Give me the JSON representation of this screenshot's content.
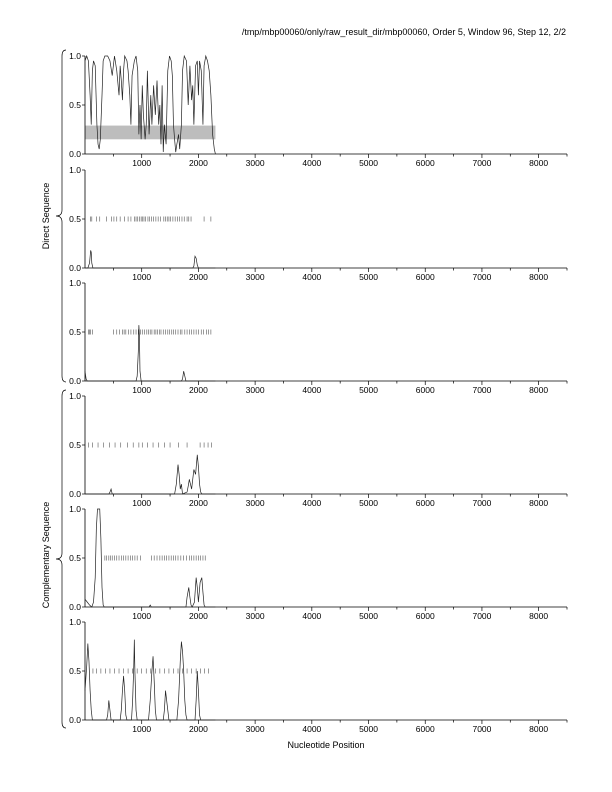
{
  "header": {
    "title": "/tmp/mbp00060/only/raw_result_dir/mbp00060, Order 5, Window 96, Step 12, 2/2"
  },
  "labels": {
    "xlabel": "Nucleotide Position",
    "direct": "Direct Sequence",
    "complementary": "Complementary Sequence"
  },
  "chart_data": {
    "type": "line",
    "xlim": [
      0,
      8500
    ],
    "ylim": [
      0,
      1
    ],
    "x_ticks": [
      1000,
      2000,
      3000,
      4000,
      5000,
      6000,
      7000,
      8000
    ],
    "y_ticks": [
      "0.0",
      "0.5",
      "1.0"
    ],
    "sequence_length": 2300,
    "panels": [
      {
        "group": "overview",
        "shaded_band": [
          0.15,
          0.29
        ],
        "series": [
          [
            0,
            0.95
          ],
          [
            30,
            1.0
          ],
          [
            60,
            0.95
          ],
          [
            90,
            0.6
          ],
          [
            110,
            0.3
          ],
          [
            130,
            0.85
          ],
          [
            150,
            0.95
          ],
          [
            180,
            0.9
          ],
          [
            210,
            0.3
          ],
          [
            230,
            0.1
          ],
          [
            250,
            0.05
          ],
          [
            270,
            0.15
          ],
          [
            300,
            0.6
          ],
          [
            320,
            0.95
          ],
          [
            350,
            1.0
          ],
          [
            400,
            1.0
          ],
          [
            440,
            0.95
          ],
          [
            480,
            0.8
          ],
          [
            500,
            0.9
          ],
          [
            520,
            1.0
          ],
          [
            560,
            0.85
          ],
          [
            600,
            0.6
          ],
          [
            620,
            0.9
          ],
          [
            640,
            0.75
          ],
          [
            660,
            0.55
          ],
          [
            680,
            0.85
          ],
          [
            700,
            1.0
          ],
          [
            740,
            0.95
          ],
          [
            760,
            0.85
          ],
          [
            790,
            0.6
          ],
          [
            810,
            0.3
          ],
          [
            830,
            0.8
          ],
          [
            870,
            0.95
          ],
          [
            900,
            1.0
          ],
          [
            930,
            0.85
          ],
          [
            950,
            0.2
          ],
          [
            970,
            0.5
          ],
          [
            990,
            0.15
          ],
          [
            1010,
            0.7
          ],
          [
            1030,
            0.4
          ],
          [
            1060,
            0.15
          ],
          [
            1080,
            0.3
          ],
          [
            1100,
            0.85
          ],
          [
            1130,
            0.2
          ],
          [
            1160,
            0.6
          ],
          [
            1180,
            0.3
          ],
          [
            1210,
            0.7
          ],
          [
            1240,
            0.4
          ],
          [
            1270,
            0.75
          ],
          [
            1300,
            0.3
          ],
          [
            1320,
            0.5
          ],
          [
            1340,
            0.1
          ],
          [
            1360,
            0.7
          ],
          [
            1380,
            0.02
          ],
          [
            1400,
            0.3
          ],
          [
            1430,
            0.1
          ],
          [
            1460,
            0.85
          ],
          [
            1490,
            1.0
          ],
          [
            1520,
            0.95
          ],
          [
            1540,
            0.8
          ],
          [
            1560,
            0.3
          ],
          [
            1580,
            0.15
          ],
          [
            1600,
            0.02
          ],
          [
            1620,
            0.1
          ],
          [
            1650,
            0.2
          ],
          [
            1670,
            0.05
          ],
          [
            1700,
            0.3
          ],
          [
            1720,
            0.85
          ],
          [
            1750,
            1.0
          ],
          [
            1790,
            0.95
          ],
          [
            1820,
            0.5
          ],
          [
            1850,
            0.9
          ],
          [
            1880,
            0.55
          ],
          [
            1900,
            0.7
          ],
          [
            1920,
            0.3
          ],
          [
            1950,
            0.9
          ],
          [
            1980,
            0.95
          ],
          [
            2000,
            0.6
          ],
          [
            2020,
            0.95
          ],
          [
            2050,
            0.85
          ],
          [
            2080,
            0.3
          ],
          [
            2100,
            0.9
          ],
          [
            2130,
            1.0
          ],
          [
            2160,
            0.95
          ],
          [
            2190,
            0.85
          ],
          [
            2220,
            0.6
          ],
          [
            2250,
            0.2
          ],
          [
            2280,
            0.05
          ],
          [
            2300,
            0.0
          ]
        ]
      },
      {
        "group": "direct",
        "marker_y": 0.5,
        "markers": [
          100,
          120,
          200,
          260,
          380,
          470,
          510,
          560,
          620,
          700,
          760,
          810,
          870,
          900,
          930,
          960,
          990,
          1010,
          1040,
          1070,
          1110,
          1140,
          1170,
          1210,
          1250,
          1290,
          1330,
          1390,
          1420,
          1450,
          1480,
          1510,
          1550,
          1590,
          1630,
          1670,
          1710,
          1750,
          1800,
          1830,
          1870,
          2100,
          2220
        ],
        "series": [
          [
            0,
            0.0
          ],
          [
            50,
            0.0
          ],
          [
            80,
            0.05
          ],
          [
            100,
            0.18
          ],
          [
            110,
            0.16
          ],
          [
            120,
            0.05
          ],
          [
            140,
            0.0
          ],
          [
            1900,
            0.0
          ],
          [
            1920,
            0.02
          ],
          [
            1940,
            0.12
          ],
          [
            1960,
            0.1
          ],
          [
            1980,
            0.03
          ],
          [
            2000,
            0.0
          ],
          [
            2300,
            0.0
          ]
        ]
      },
      {
        "group": "direct",
        "marker_y": 0.5,
        "markers": [
          60,
          80,
          100,
          130,
          500,
          560,
          610,
          660,
          690,
          720,
          770,
          810,
          860,
          900,
          940,
          980,
          1010,
          1050,
          1090,
          1120,
          1150,
          1180,
          1220,
          1250,
          1280,
          1310,
          1340,
          1380,
          1420,
          1460,
          1490,
          1530,
          1560,
          1600,
          1640,
          1680,
          1710,
          1760,
          1800,
          1840,
          1880,
          1920,
          1960,
          2000,
          2050,
          2090,
          2140,
          2180,
          2220
        ],
        "series": [
          [
            0,
            0.1
          ],
          [
            20,
            0.02
          ],
          [
            40,
            0.0
          ],
          [
            900,
            0.0
          ],
          [
            920,
            0.05
          ],
          [
            940,
            0.3
          ],
          [
            950,
            0.57
          ],
          [
            960,
            0.45
          ],
          [
            970,
            0.1
          ],
          [
            990,
            0.0
          ],
          [
            1700,
            0.0
          ],
          [
            1720,
            0.02
          ],
          [
            1740,
            0.1
          ],
          [
            1760,
            0.05
          ],
          [
            1780,
            0.0
          ],
          [
            2300,
            0.0
          ]
        ]
      },
      {
        "group": "complementary",
        "marker_y": 0.5,
        "markers": [
          60,
          130,
          230,
          330,
          430,
          530,
          630,
          750,
          850,
          950,
          1010,
          1100,
          1200,
          1300,
          1400,
          1500,
          1650,
          1800,
          2030,
          2100,
          2170,
          2230
        ],
        "series": [
          [
            0,
            0.0
          ],
          [
            420,
            0.0
          ],
          [
            440,
            0.02
          ],
          [
            460,
            0.05
          ],
          [
            480,
            0.0
          ],
          [
            1580,
            0.0
          ],
          [
            1610,
            0.1
          ],
          [
            1640,
            0.3
          ],
          [
            1660,
            0.2
          ],
          [
            1680,
            0.05
          ],
          [
            1700,
            0.1
          ],
          [
            1720,
            0.0
          ],
          [
            1800,
            0.02
          ],
          [
            1820,
            0.08
          ],
          [
            1840,
            0.15
          ],
          [
            1860,
            0.1
          ],
          [
            1880,
            0.05
          ],
          [
            1900,
            0.15
          ],
          [
            1920,
            0.25
          ],
          [
            1950,
            0.2
          ],
          [
            1980,
            0.4
          ],
          [
            2000,
            0.28
          ],
          [
            2020,
            0.1
          ],
          [
            2040,
            0.02
          ],
          [
            2060,
            0.0
          ],
          [
            2300,
            0.0
          ]
        ]
      },
      {
        "group": "complementary",
        "marker_y": 0.5,
        "markers": [
          350,
          380,
          420,
          450,
          480,
          520,
          560,
          600,
          640,
          680,
          720,
          760,
          800,
          840,
          880,
          920,
          980,
          1170,
          1220,
          1270,
          1320,
          1360,
          1400,
          1440,
          1480,
          1520,
          1560,
          1600,
          1640,
          1690,
          1740,
          1790,
          1840,
          1880,
          1920,
          1960,
          2000,
          2040,
          2080,
          2120
        ],
        "series": [
          [
            0,
            0.08
          ],
          [
            40,
            0.05
          ],
          [
            80,
            0.02
          ],
          [
            120,
            0.0
          ],
          [
            150,
            0.05
          ],
          [
            180,
            0.3
          ],
          [
            200,
            0.8
          ],
          [
            220,
            1.0
          ],
          [
            240,
            1.0
          ],
          [
            260,
            1.0
          ],
          [
            280,
            0.7
          ],
          [
            300,
            0.2
          ],
          [
            320,
            0.02
          ],
          [
            340,
            0.0
          ],
          [
            1130,
            0.0
          ],
          [
            1150,
            0.02
          ],
          [
            1170,
            0.0
          ],
          [
            1780,
            0.0
          ],
          [
            1800,
            0.1
          ],
          [
            1830,
            0.2
          ],
          [
            1850,
            0.1
          ],
          [
            1870,
            0.02
          ],
          [
            1890,
            0.0
          ],
          [
            1930,
            0.05
          ],
          [
            1960,
            0.3
          ],
          [
            1980,
            0.2
          ],
          [
            2000,
            0.05
          ],
          [
            2030,
            0.25
          ],
          [
            2060,
            0.3
          ],
          [
            2080,
            0.15
          ],
          [
            2100,
            0.02
          ],
          [
            2120,
            0.0
          ],
          [
            2300,
            0.0
          ]
        ]
      },
      {
        "group": "complementary",
        "marker_y": 0.5,
        "markers": [
          140,
          200,
          280,
          360,
          440,
          520,
          600,
          680,
          760,
          840,
          920,
          1000,
          1080,
          1160,
          1240,
          1320,
          1400,
          1480,
          1560,
          1640,
          1720,
          1800,
          1880,
          1960,
          2040,
          2110,
          2180
        ],
        "series": [
          [
            0,
            0.3
          ],
          [
            30,
            0.55
          ],
          [
            50,
            0.78
          ],
          [
            70,
            0.6
          ],
          [
            90,
            0.3
          ],
          [
            110,
            0.1
          ],
          [
            130,
            0.0
          ],
          [
            380,
            0.0
          ],
          [
            400,
            0.05
          ],
          [
            420,
            0.2
          ],
          [
            440,
            0.1
          ],
          [
            460,
            0.0
          ],
          [
            620,
            0.0
          ],
          [
            640,
            0.1
          ],
          [
            660,
            0.3
          ],
          [
            680,
            0.45
          ],
          [
            700,
            0.3
          ],
          [
            720,
            0.05
          ],
          [
            740,
            0.0
          ],
          [
            820,
            0.0
          ],
          [
            840,
            0.2
          ],
          [
            860,
            0.55
          ],
          [
            870,
            0.82
          ],
          [
            880,
            0.5
          ],
          [
            900,
            0.1
          ],
          [
            920,
            0.0
          ],
          [
            1120,
            0.0
          ],
          [
            1150,
            0.2
          ],
          [
            1180,
            0.5
          ],
          [
            1200,
            0.65
          ],
          [
            1220,
            0.4
          ],
          [
            1240,
            0.1
          ],
          [
            1260,
            0.0
          ],
          [
            1380,
            0.0
          ],
          [
            1400,
            0.1
          ],
          [
            1420,
            0.3
          ],
          [
            1440,
            0.2
          ],
          [
            1460,
            0.1
          ],
          [
            1480,
            0.0
          ],
          [
            1620,
            0.0
          ],
          [
            1650,
            0.2
          ],
          [
            1680,
            0.6
          ],
          [
            1700,
            0.8
          ],
          [
            1720,
            0.7
          ],
          [
            1740,
            0.5
          ],
          [
            1760,
            0.2
          ],
          [
            1780,
            0.05
          ],
          [
            1800,
            0.0
          ],
          [
            1940,
            0.0
          ],
          [
            1960,
            0.2
          ],
          [
            1980,
            0.5
          ],
          [
            2000,
            0.3
          ],
          [
            2020,
            0.05
          ],
          [
            2040,
            0.0
          ],
          [
            2300,
            0.0
          ]
        ]
      }
    ]
  }
}
